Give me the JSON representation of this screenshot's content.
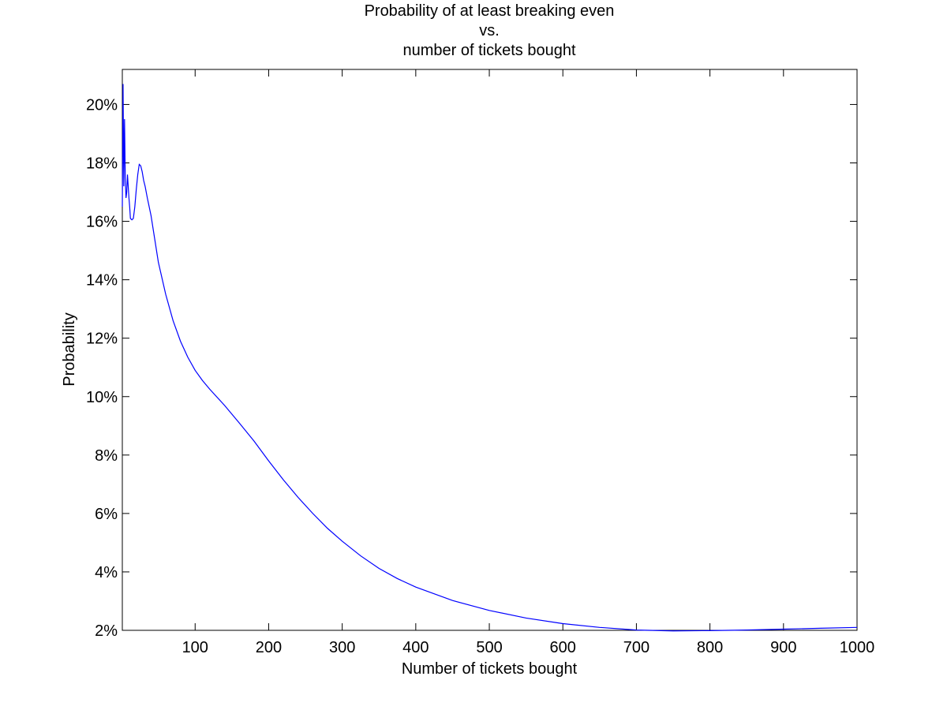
{
  "chart_data": {
    "type": "line",
    "title_lines": [
      "Probability of at least breaking even",
      "vs.",
      "number of tickets bought"
    ],
    "xlabel": "Number of tickets bought",
    "ylabel": "Probability",
    "xlim": [
      1,
      1000
    ],
    "ylim": [
      0.02,
      0.212
    ],
    "x_ticks": [
      100,
      200,
      300,
      400,
      500,
      600,
      700,
      800,
      900,
      1000
    ],
    "x_tick_labels": [
      "100",
      "200",
      "300",
      "400",
      "500",
      "600",
      "700",
      "800",
      "900",
      "1000"
    ],
    "y_ticks": [
      0.02,
      0.04,
      0.06,
      0.08,
      0.1,
      0.12,
      0.14,
      0.16,
      0.18,
      0.2
    ],
    "y_tick_labels": [
      "2%",
      "4%",
      "6%",
      "8%",
      "10%",
      "12%",
      "14%",
      "16%",
      "18%",
      "20%"
    ],
    "grid": false,
    "line_color": "#0000ff",
    "series": [
      {
        "x": [
          1,
          2,
          3,
          4,
          5,
          6,
          7,
          8,
          9,
          10,
          11,
          12,
          14,
          16,
          18,
          20,
          22,
          24,
          26,
          28,
          30,
          32,
          35,
          40,
          45,
          50,
          60,
          70,
          80,
          90,
          100,
          110,
          120,
          140,
          160,
          180,
          200,
          220,
          240,
          260,
          280,
          300,
          325,
          350,
          375,
          400,
          450,
          500,
          550,
          600,
          650,
          700,
          750,
          800,
          850,
          900,
          950,
          1000
        ],
        "y": [
          0.165,
          0.207,
          0.172,
          0.195,
          0.175,
          0.168,
          0.17,
          0.176,
          0.172,
          0.168,
          0.165,
          0.161,
          0.1605,
          0.161,
          0.165,
          0.171,
          0.176,
          0.1795,
          0.179,
          0.177,
          0.174,
          0.172,
          0.168,
          0.162,
          0.154,
          0.146,
          0.135,
          0.126,
          0.119,
          0.1135,
          0.109,
          0.1055,
          0.1025,
          0.097,
          0.091,
          0.0848,
          0.078,
          0.0715,
          0.0655,
          0.06,
          0.0549,
          0.0505,
          0.0455,
          0.0412,
          0.0377,
          0.0348,
          0.0302,
          0.0268,
          0.0242,
          0.0223,
          0.021,
          0.0201,
          0.0198,
          0.0199,
          0.0201,
          0.0204,
          0.0207,
          0.021
        ]
      }
    ]
  }
}
